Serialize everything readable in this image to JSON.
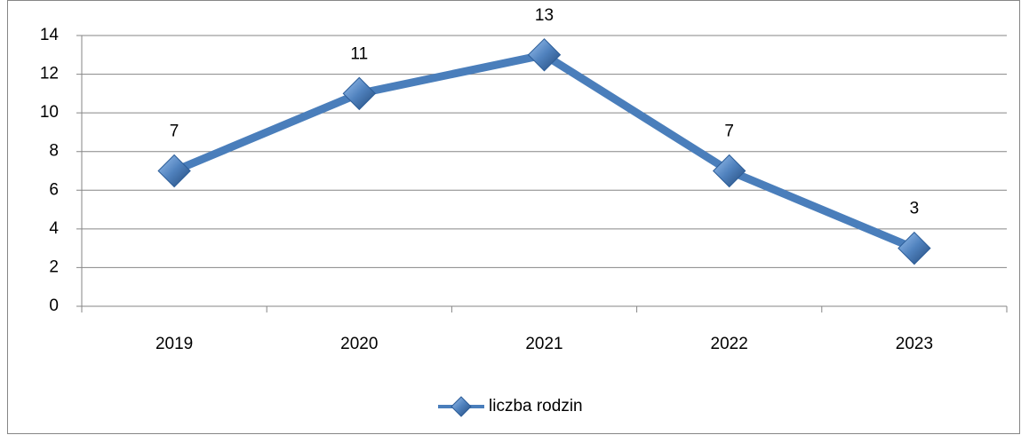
{
  "chart_data": {
    "type": "line",
    "categories": [
      "2019",
      "2020",
      "2021",
      "2022",
      "2023"
    ],
    "series": [
      {
        "name": "liczba rodzin",
        "color": "#4a7ebb",
        "values": [
          7,
          11,
          13,
          7,
          3
        ]
      }
    ],
    "ylim": [
      0,
      14
    ],
    "yticks": [
      0,
      2,
      4,
      6,
      8,
      10,
      12,
      14
    ],
    "grid": true,
    "legend": "bottom"
  }
}
